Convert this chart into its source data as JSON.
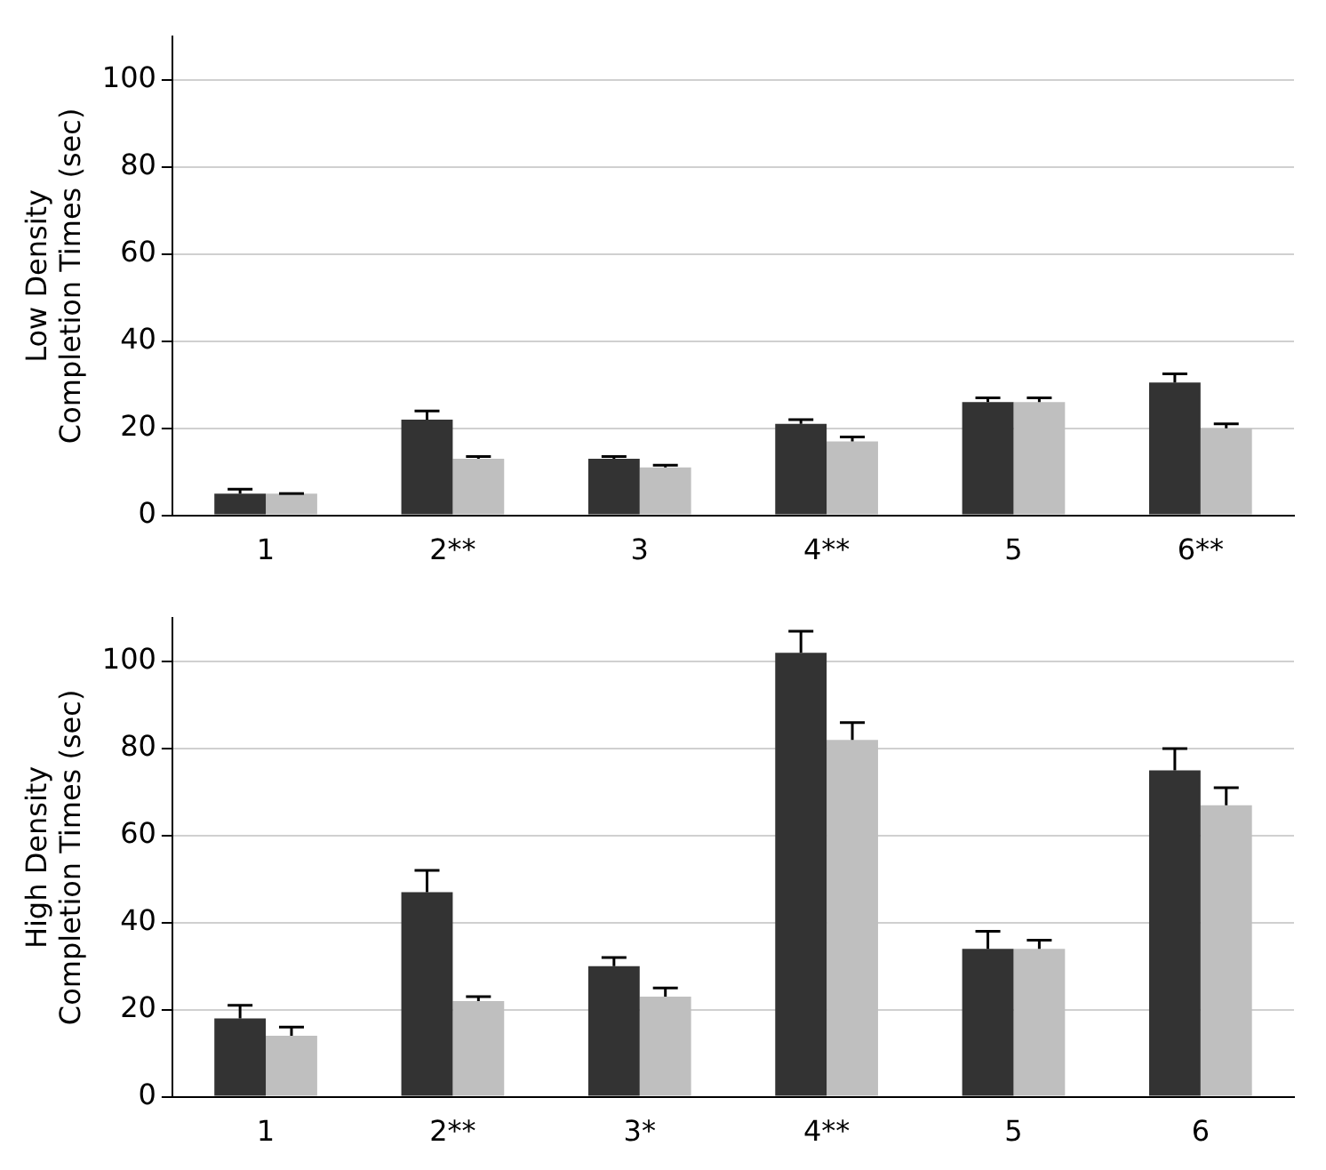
{
  "chart_data": [
    {
      "type": "bar",
      "ylabel": "Low Density\nCompletion Times (sec)",
      "categories": [
        "1",
        "2**",
        "3",
        "4**",
        "5",
        "6**"
      ],
      "ylim": [
        0,
        110
      ],
      "yticks": [
        0,
        20,
        40,
        60,
        80,
        100
      ],
      "grid": "y",
      "legend": false,
      "series": [
        {
          "color": "#333333",
          "values": [
            5,
            22,
            13,
            21,
            26,
            30.5
          ],
          "errors": [
            [
              5,
              6
            ],
            [
              22,
              24
            ],
            [
              13,
              13.5
            ],
            [
              21,
              22
            ],
            [
              26,
              27
            ],
            [
              30.5,
              32.5
            ]
          ]
        },
        {
          "color": "#bfbfbf",
          "values": [
            5,
            13,
            11,
            17,
            26,
            20
          ],
          "errors": [
            [
              5,
              5
            ],
            [
              13,
              13.5
            ],
            [
              11,
              11.5
            ],
            [
              17,
              18
            ],
            [
              26,
              27
            ],
            [
              20,
              21
            ]
          ]
        }
      ]
    },
    {
      "type": "bar",
      "ylabel": "High Density\nCompletion Times (sec)",
      "categories": [
        "1",
        "2**",
        "3*",
        "4**",
        "5",
        "6"
      ],
      "ylim": [
        0,
        110
      ],
      "yticks": [
        0,
        20,
        40,
        60,
        80,
        100
      ],
      "grid": "y",
      "legend": false,
      "series": [
        {
          "color": "#333333",
          "values": [
            18,
            47,
            30,
            102,
            34,
            75
          ],
          "errors": [
            [
              18,
              21
            ],
            [
              47,
              52
            ],
            [
              30,
              32
            ],
            [
              102,
              107
            ],
            [
              34,
              38
            ],
            [
              75,
              80
            ]
          ]
        },
        {
          "color": "#bfbfbf",
          "values": [
            14,
            22,
            23,
            82,
            34,
            67
          ],
          "errors": [
            [
              14,
              16
            ],
            [
              22,
              23
            ],
            [
              23,
              25
            ],
            [
              82,
              86
            ],
            [
              34,
              36
            ],
            [
              67,
              71
            ]
          ]
        }
      ]
    }
  ]
}
